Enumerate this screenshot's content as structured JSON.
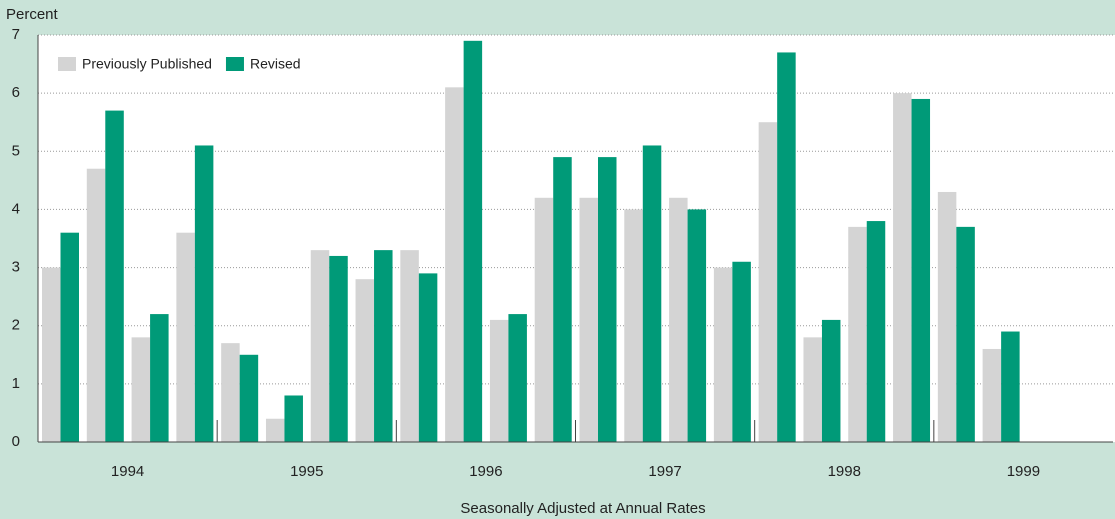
{
  "chart_data": {
    "type": "bar",
    "y_label": "Percent",
    "x_label": "Seasonally Adjusted at Annual Rates",
    "years": [
      "1994",
      "1995",
      "1996",
      "1997",
      "1998",
      "1999"
    ],
    "series": [
      {
        "name": "Previously Published",
        "color": "#d4d4d4",
        "values": [
          3.0,
          4.7,
          1.8,
          3.6,
          1.7,
          0.4,
          3.3,
          2.8,
          3.3,
          6.1,
          2.1,
          4.2,
          4.2,
          4.0,
          4.2,
          3.0,
          5.5,
          1.8,
          3.7,
          6.0,
          4.3,
          1.6
        ]
      },
      {
        "name": "Revised",
        "color": "#009a78",
        "values": [
          3.6,
          5.7,
          2.2,
          5.1,
          1.5,
          0.8,
          3.2,
          3.3,
          2.9,
          6.9,
          2.2,
          4.9,
          4.9,
          5.1,
          4.0,
          3.1,
          6.7,
          2.1,
          3.8,
          5.9,
          3.7,
          1.9
        ]
      }
    ],
    "ylim": [
      0,
      7
    ],
    "yticks": [
      0,
      1,
      2,
      3,
      4,
      5,
      6,
      7
    ],
    "grid": true,
    "legend": "top-left"
  }
}
